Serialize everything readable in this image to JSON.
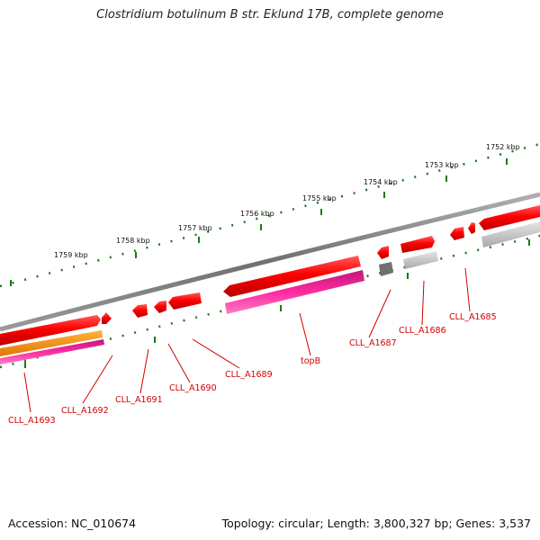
{
  "title": "Clostridium botulinum B str. Eklund 17B, complete genome",
  "footer": {
    "accession": "Accession: NC_010674",
    "summary": "Topology: circular; Length: 3,800,327 bp; Genes: 3,537"
  },
  "scale_labels": [
    "1759 kbp",
    "1758 kbp",
    "1757 kbp",
    "1756 kbp",
    "1755 kbp",
    "1754 kbp",
    "1753 kbp",
    "1752 kbp"
  ],
  "gene_labels": [
    "CLL_A1693",
    "CLL_A1692",
    "CLL_A1691",
    "CLL_A1690",
    "CLL_A1689",
    "topB",
    "CLL_A1687",
    "CLL_A1686",
    "CLL_A1685"
  ],
  "colors": {
    "backbone": "#808080",
    "gene_red": "#ff0000",
    "gene_magenta": "#e8198c",
    "gene_orange": "#ff8c00",
    "gene_grey": "#c0c0c0",
    "gene_dark_grey": "#707070",
    "tick_green": "#1a7a1a",
    "label_red": "#d40000"
  }
}
